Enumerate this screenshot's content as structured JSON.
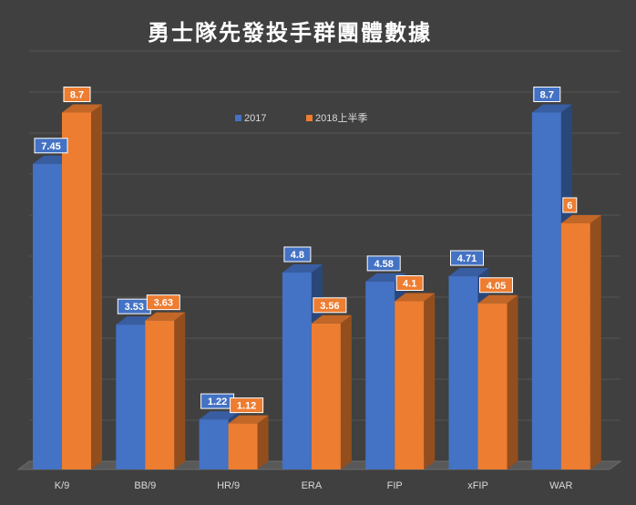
{
  "chart_data": {
    "type": "bar",
    "title": "勇士隊先發投手群團體數據",
    "categories": [
      "K/9",
      "BB/9",
      "HR/9",
      "ERA",
      "FIP",
      "xFIP",
      "WAR"
    ],
    "series": [
      {
        "name": "2017",
        "values": [
          7.45,
          3.53,
          1.22,
          4.8,
          4.58,
          4.71,
          8.7
        ],
        "color": "#4472C4"
      },
      {
        "name": "2018上半季",
        "values": [
          8.7,
          3.63,
          1.12,
          3.56,
          4.1,
          4.05,
          6
        ],
        "color": "#ED7D31"
      }
    ],
    "ylim": [
      0,
      10
    ],
    "legend": "top-center",
    "grid": true,
    "style": "3d-column"
  }
}
